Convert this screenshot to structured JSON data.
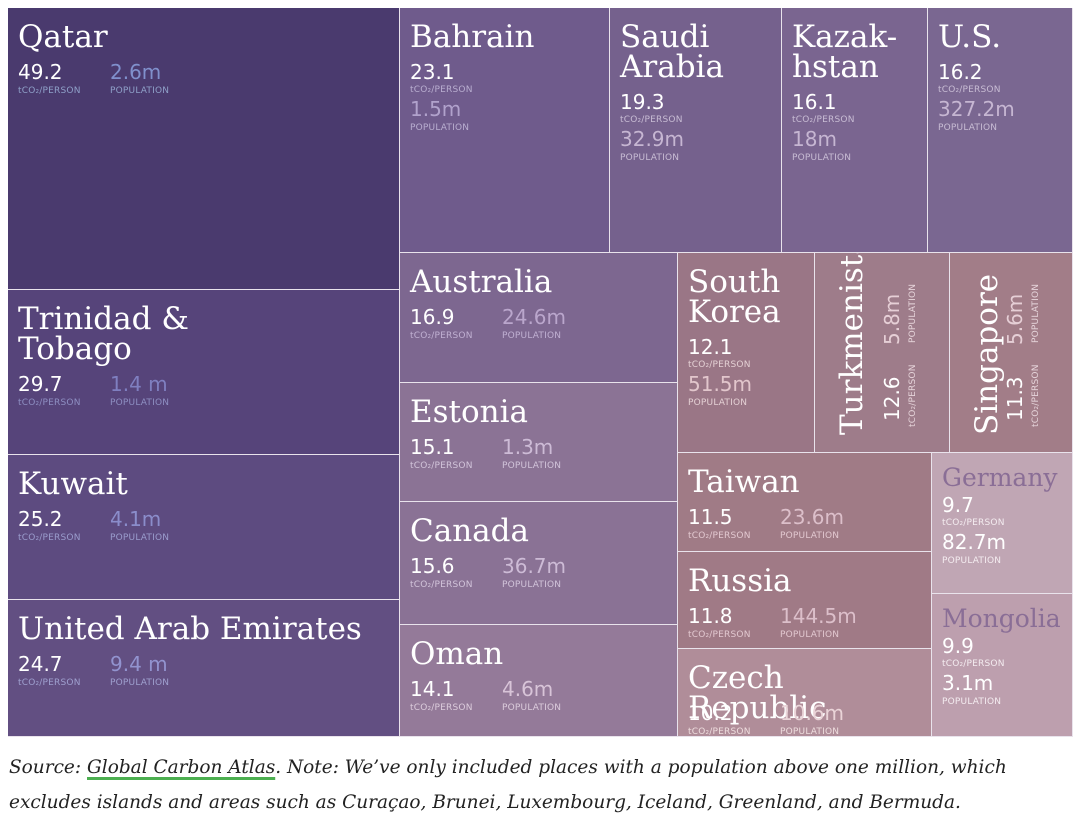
{
  "chart_data": {
    "type": "treemap",
    "value_unit": "tCO₂/PERSON",
    "population_unit": "POPULATION",
    "items": [
      {
        "name": "Qatar",
        "value": 49.2,
        "value_label": "49.2",
        "population": "2.6m",
        "color": "#4a3a6e"
      },
      {
        "name": "Bahrain",
        "value": 23.1,
        "value_label": "23.1",
        "population": "1.5m",
        "color": "#6f5b8c"
      },
      {
        "name": "Saudi\nArabia",
        "value": 19.3,
        "value_label": "19.3",
        "population": "32.9m",
        "color": "#75618d"
      },
      {
        "name": "Kazak-\nhstan",
        "value": 16.1,
        "value_label": "16.1",
        "population": "18m",
        "color": "#7a6590"
      },
      {
        "name": "U.S.",
        "value": 16.2,
        "value_label": "16.2",
        "population": "327.2m",
        "color": "#7a6791"
      },
      {
        "name": "Trinidad &\nTobago",
        "value": 29.7,
        "value_label": "29.7",
        "population": "1.4 m",
        "color": "#56447a"
      },
      {
        "name": "Australia",
        "value": 16.9,
        "value_label": "16.9",
        "population": "24.6m",
        "color": "#7d6790"
      },
      {
        "name": "South\nKorea",
        "value": 12.1,
        "value_label": "12.1",
        "population": "51.5m",
        "color": "#9a7686"
      },
      {
        "name": "Turkmenistan",
        "value": 12.6,
        "value_label": "12.6",
        "population": "5.8m",
        "color": "#9e7c8a"
      },
      {
        "name": "Singapore",
        "value": 11.3,
        "value_label": "11.3",
        "population": "5.6m",
        "color": "#a27d88"
      },
      {
        "name": "Kuwait",
        "value": 25.2,
        "value_label": "25.2",
        "population": "4.1m",
        "color": "#5d4b80"
      },
      {
        "name": "Estonia",
        "value": 15.1,
        "value_label": "15.1",
        "population": "1.3m",
        "color": "#8b7395"
      },
      {
        "name": "Taiwan",
        "value": 11.5,
        "value_label": "11.5",
        "population": "23.6m",
        "color": "#a07b86"
      },
      {
        "name": "Germany",
        "value": 9.7,
        "value_label": "9.7",
        "population": "82.7m",
        "color": "#c0a6b4"
      },
      {
        "name": "Canada",
        "value": 15.6,
        "value_label": "15.6",
        "population": "36.7m",
        "color": "#8a7295"
      },
      {
        "name": "Russia",
        "value": 11.8,
        "value_label": "11.8",
        "population": "144.5m",
        "color": "#a07a86"
      },
      {
        "name": "United Arab Emirates",
        "value": 24.7,
        "value_label": "24.7",
        "population": "9.4 m",
        "color": "#624f82"
      },
      {
        "name": "Oman",
        "value": 14.1,
        "value_label": "14.1",
        "population": "4.6m",
        "color": "#947a99"
      },
      {
        "name": "Mongolia",
        "value": 9.9,
        "value_label": "9.9",
        "population": "3.1m",
        "color": "#bd9fae"
      },
      {
        "name": "Czech Republic",
        "value": 10.2,
        "value_label": "10.2",
        "population": "10.6m",
        "color": "#b08d99"
      }
    ]
  },
  "caption": {
    "prefix": "Source: ",
    "link": "Global Carbon Atlas",
    "rest": ". Note: We’ve only included places with a population above one million, which excludes islands and areas such as Curaçao, Brunei, Luxembourg, Iceland, Greenland, and Bermuda."
  }
}
